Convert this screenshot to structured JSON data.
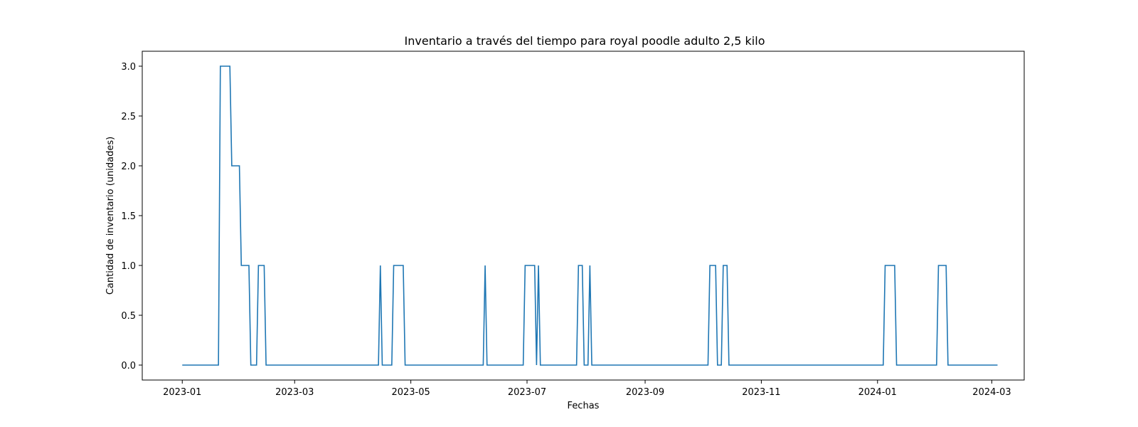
{
  "chart_data": {
    "type": "line",
    "title": "Inventario a través del tiempo para royal poodle  adulto 2,5 kilo",
    "xlabel": "Fechas",
    "ylabel": "Cantidad de inventario (unidades)",
    "xlim": [
      "2022-12-11",
      "2024-03-18"
    ],
    "ylim": [
      -0.15,
      3.15
    ],
    "grid": false,
    "line_color": "#1f77b4",
    "x_ticks": [
      "2023-01-01",
      "2023-03-01",
      "2023-05-01",
      "2023-07-01",
      "2023-09-01",
      "2023-11-01",
      "2024-01-01",
      "2024-03-01"
    ],
    "x_tick_labels": [
      "2023-01",
      "2023-03",
      "2023-05",
      "2023-07",
      "2023-09",
      "2023-11",
      "2024-01",
      "2024-03"
    ],
    "y_ticks": [
      0.0,
      0.5,
      1.0,
      1.5,
      2.0,
      2.5,
      3.0
    ],
    "y_tick_labels": [
      "0.0",
      "0.5",
      "1.0",
      "1.5",
      "2.0",
      "2.5",
      "3.0"
    ],
    "series": [
      {
        "x": [
          "2023-01-01",
          "2023-01-20",
          "2023-01-21",
          "2023-01-26",
          "2023-01-27",
          "2023-01-31",
          "2023-02-01",
          "2023-02-05",
          "2023-02-06",
          "2023-02-09",
          "2023-02-10",
          "2023-02-13",
          "2023-02-14",
          "2023-04-14",
          "2023-04-15",
          "2023-04-16",
          "2023-04-21",
          "2023-04-22",
          "2023-04-27",
          "2023-04-28",
          "2023-06-08",
          "2023-06-09",
          "2023-06-10",
          "2023-06-29",
          "2023-06-30",
          "2023-07-05",
          "2023-07-06",
          "2023-07-07",
          "2023-07-08",
          "2023-07-27",
          "2023-07-28",
          "2023-07-30",
          "2023-07-31",
          "2023-08-02",
          "2023-08-03",
          "2023-08-04",
          "2023-10-04",
          "2023-10-05",
          "2023-10-08",
          "2023-10-09",
          "2023-10-11",
          "2023-10-12",
          "2023-10-14",
          "2023-10-15",
          "2024-01-04",
          "2024-01-05",
          "2024-01-10",
          "2024-01-11",
          "2024-02-01",
          "2024-02-02",
          "2024-02-06",
          "2024-02-07",
          "2024-03-04"
        ],
        "y": [
          0,
          0,
          3,
          3,
          2,
          2,
          1,
          1,
          0,
          0,
          1,
          1,
          0,
          0,
          1,
          0,
          0,
          1,
          1,
          0,
          0,
          1,
          0,
          0,
          1,
          1,
          0,
          1,
          0,
          0,
          1,
          1,
          0,
          0,
          1,
          0,
          0,
          1,
          1,
          0,
          0,
          1,
          1,
          0,
          0,
          1,
          1,
          0,
          0,
          1,
          1,
          0,
          0
        ]
      }
    ]
  }
}
